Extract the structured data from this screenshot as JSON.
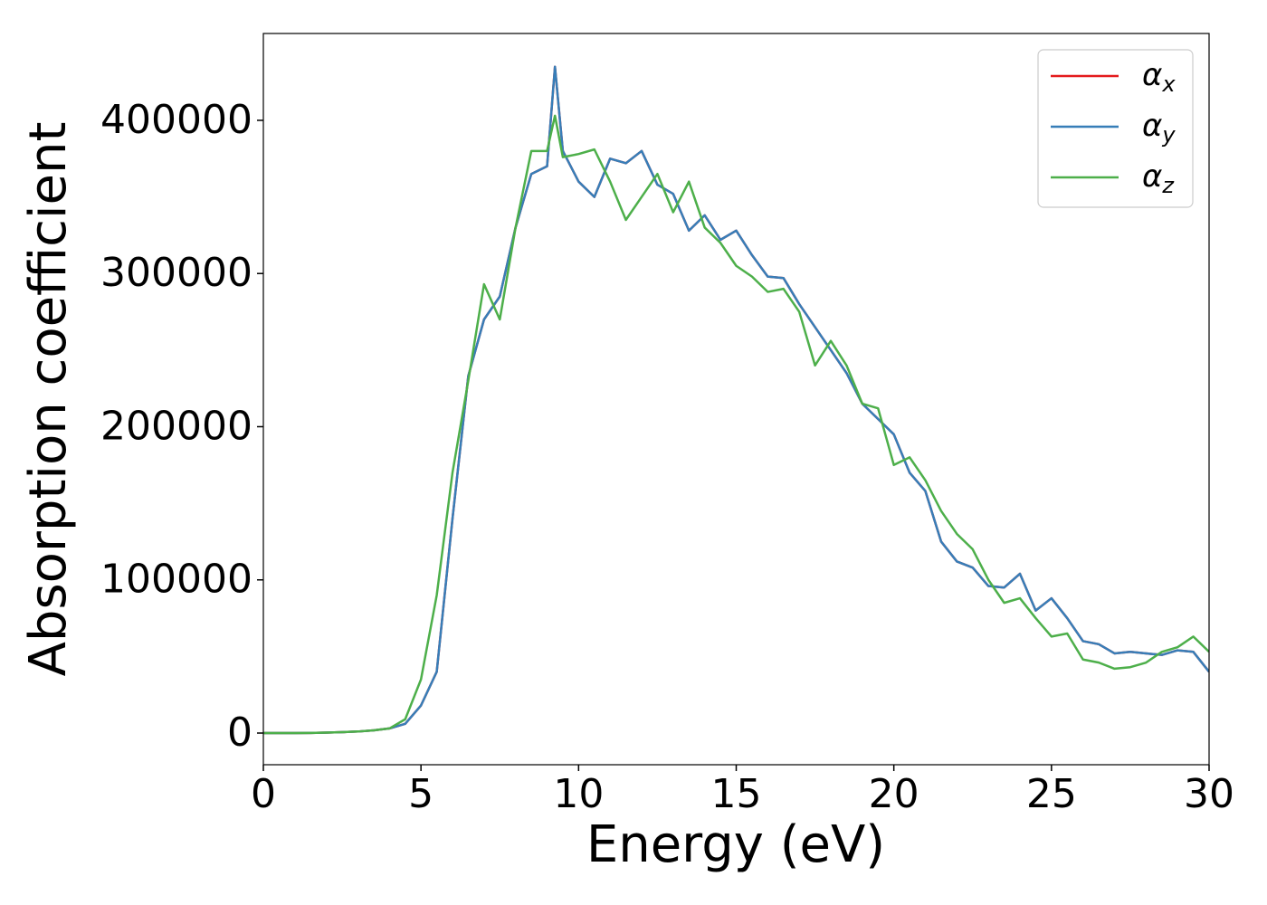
{
  "chart_data": {
    "type": "line",
    "xlabel": "Energy (eV)",
    "ylabel": "Absorption coefficient",
    "x": [
      0,
      0.5,
      1,
      1.5,
      2,
      2.5,
      3,
      3.5,
      4,
      4.5,
      5,
      5.5,
      6,
      6.5,
      7,
      7.5,
      8,
      8.5,
      9,
      9.25,
      9.5,
      10,
      10.5,
      11,
      11.5,
      12,
      12.5,
      13,
      13.5,
      14,
      14.5,
      15,
      15.5,
      16,
      16.5,
      17,
      17.5,
      18,
      18.5,
      19,
      19.5,
      20,
      20.5,
      21,
      21.5,
      22,
      22.5,
      23,
      23.5,
      24,
      24.5,
      25,
      25.5,
      26,
      26.5,
      27,
      27.5,
      28,
      28.5,
      29,
      29.5,
      30
    ],
    "series": [
      {
        "name": "αx",
        "color": "#e41a1c",
        "values": [
          0,
          0,
          0,
          100,
          300,
          600,
          1000,
          1800,
          3000,
          6000,
          18000,
          40000,
          140000,
          233000,
          270000,
          285000,
          330000,
          365000,
          370000,
          435000,
          380000,
          360000,
          350000,
          375000,
          372000,
          380000,
          358000,
          352000,
          328000,
          338000,
          322000,
          328000,
          312000,
          298000,
          297000,
          280000,
          265000,
          250000,
          235000,
          215000,
          205000,
          195000,
          170000,
          158000,
          125000,
          112000,
          108000,
          96000,
          95000,
          104000,
          80000,
          88000,
          75000,
          60000,
          58000,
          52000,
          53000,
          52000,
          51000,
          54000,
          53000,
          40000
        ]
      },
      {
        "name": "αy",
        "color": "#377eb8",
        "values": [
          0,
          0,
          0,
          100,
          300,
          600,
          1000,
          1800,
          3000,
          6000,
          18000,
          40000,
          140000,
          233000,
          270000,
          285000,
          330000,
          365000,
          370000,
          435000,
          380000,
          360000,
          350000,
          375000,
          372000,
          380000,
          358000,
          352000,
          328000,
          338000,
          322000,
          328000,
          312000,
          298000,
          297000,
          280000,
          265000,
          250000,
          235000,
          215000,
          205000,
          195000,
          170000,
          158000,
          125000,
          112000,
          108000,
          96000,
          95000,
          104000,
          80000,
          88000,
          75000,
          60000,
          58000,
          52000,
          53000,
          52000,
          51000,
          54000,
          53000,
          40000
        ]
      },
      {
        "name": "αz",
        "color": "#4daf4a",
        "values": [
          0,
          0,
          0,
          100,
          300,
          600,
          1000,
          1800,
          3000,
          9000,
          35000,
          90000,
          170000,
          230000,
          293000,
          270000,
          330000,
          380000,
          380000,
          403000,
          376000,
          378000,
          381000,
          360000,
          335000,
          350000,
          365000,
          340000,
          360000,
          330000,
          320000,
          305000,
          298000,
          288000,
          290000,
          275000,
          240000,
          256000,
          240000,
          215000,
          212000,
          175000,
          180000,
          165000,
          145000,
          130000,
          120000,
          100000,
          85000,
          88000,
          75000,
          63000,
          65000,
          48000,
          46000,
          42000,
          43000,
          46000,
          53000,
          56000,
          63000,
          53000
        ]
      }
    ],
    "xlim": [
      0,
      30
    ],
    "xticks": [
      0,
      5,
      10,
      15,
      20,
      25,
      30
    ],
    "ylim": [
      -20680,
      456700
    ],
    "yticks": [
      0,
      100000,
      200000,
      300000,
      400000
    ],
    "legend": "upper right",
    "grid": false
  }
}
